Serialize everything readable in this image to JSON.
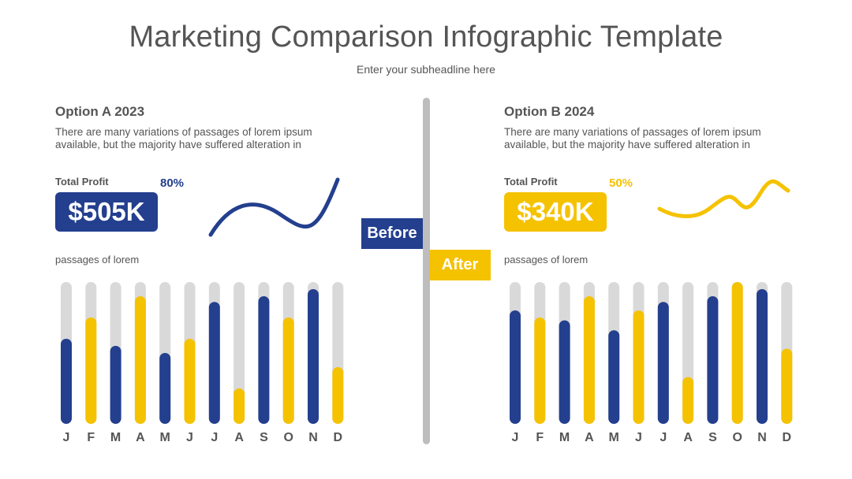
{
  "header": {
    "title": "Marketing Comparison Infographic Template",
    "subtitle": "Enter your subheadline here"
  },
  "colors": {
    "blue": "#233f8e",
    "yellow": "#f5c200",
    "track": "#d9d9d9",
    "divider": "#bdbdbd"
  },
  "panel_a": {
    "title": "Option A 2023",
    "description": "There are many variations of passages of lorem ipsum available, but the majority have suffered alteration in",
    "profit_label": "Total Profit",
    "profit_value": "$505K",
    "percent": "80%",
    "accent": "#233f8e",
    "chart_label": "passages of lorem"
  },
  "panel_b": {
    "title": "Option B 2024",
    "description": "There are many variations of passages of lorem ipsum available, but the majority have suffered alteration in",
    "profit_label": "Total Profit",
    "profit_value": "$340K",
    "percent": "50%",
    "accent": "#f5c200",
    "chart_label": "passages of lorem"
  },
  "labels": {
    "before": "Before",
    "after": "After"
  },
  "chart_data": [
    {
      "type": "bar",
      "categories": [
        "J",
        "F",
        "M",
        "A",
        "M",
        "J",
        "J",
        "A",
        "S",
        "O",
        "N",
        "D"
      ],
      "values": [
        60,
        75,
        55,
        90,
        50,
        60,
        86,
        25,
        90,
        75,
        95,
        40
      ],
      "colors": [
        "blue",
        "yellow",
        "blue",
        "yellow",
        "blue",
        "yellow",
        "blue",
        "yellow",
        "blue",
        "yellow",
        "blue",
        "yellow"
      ],
      "ylim": [
        0,
        100
      ]
    },
    {
      "type": "bar",
      "categories": [
        "J",
        "F",
        "M",
        "A",
        "M",
        "J",
        "J",
        "A",
        "S",
        "O",
        "N",
        "D"
      ],
      "values": [
        80,
        75,
        73,
        90,
        66,
        80,
        86,
        33,
        90,
        100,
        95,
        53
      ],
      "colors": [
        "blue",
        "yellow",
        "blue",
        "yellow",
        "blue",
        "yellow",
        "blue",
        "yellow",
        "blue",
        "yellow",
        "blue",
        "yellow"
      ],
      "ylim": [
        0,
        100
      ]
    }
  ]
}
